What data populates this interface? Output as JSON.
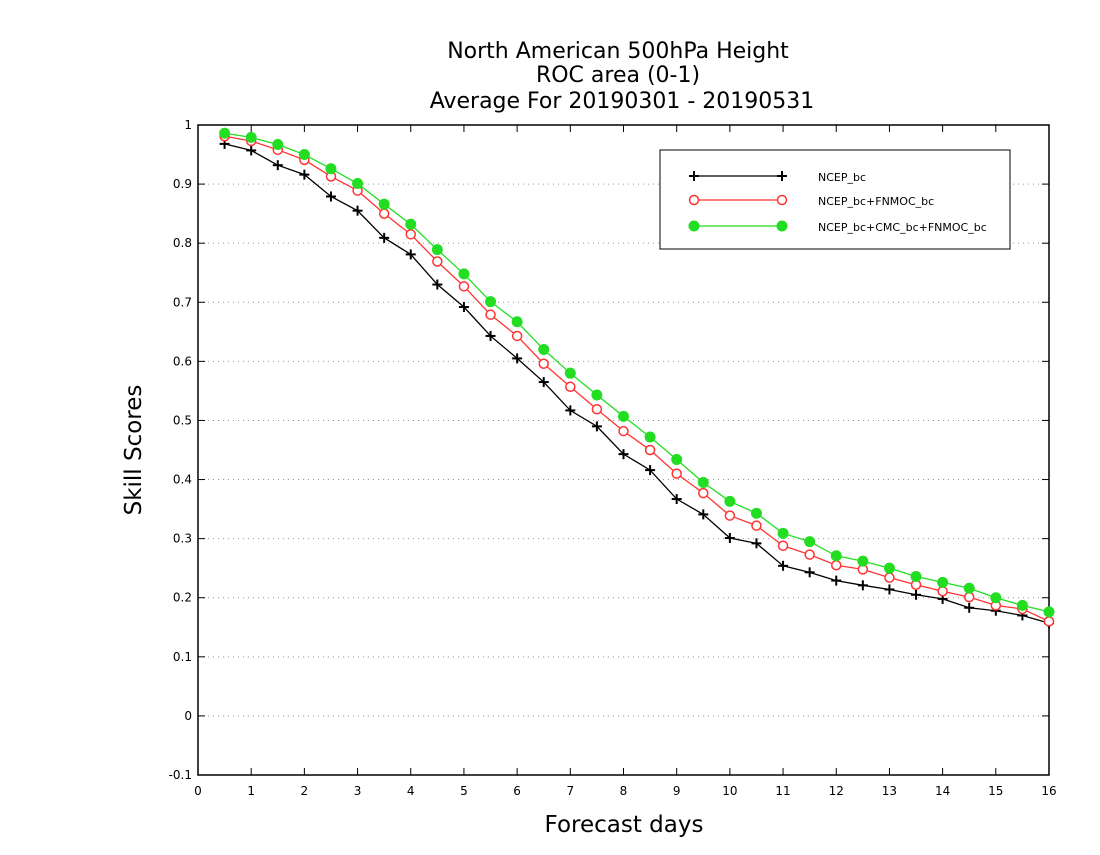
{
  "titles": [
    "North American 500hPa Height",
    "ROC area (0-1)",
    "Average For 20190301 - 20190531"
  ],
  "chart_data": {
    "type": "line",
    "title": "North American 500hPa Height / ROC area (0-1) / Average For 20190301 - 20190531",
    "xlabel": "Forecast days",
    "ylabel": "Skill Scores",
    "xlim": [
      0,
      16
    ],
    "ylim": [
      -0.1,
      1
    ],
    "xticks": [
      "0",
      "1",
      "2",
      "3",
      "4",
      "5",
      "6",
      "7",
      "8",
      "9",
      "10",
      "11",
      "12",
      "13",
      "14",
      "15",
      "16"
    ],
    "yticks": [
      "-0.1",
      "0",
      "0.1",
      "0.2",
      "0.3",
      "0.4",
      "0.5",
      "0.6",
      "0.7",
      "0.8",
      "0.9",
      "1"
    ],
    "grid": "horizontal dotted",
    "legend_position": "top-right",
    "x": [
      0.5,
      1,
      1.5,
      2,
      2.5,
      3,
      3.5,
      4,
      4.5,
      5,
      5.5,
      6,
      6.5,
      7,
      7.5,
      8,
      8.5,
      9,
      9.5,
      10,
      10.5,
      11,
      11.5,
      12,
      12.5,
      13,
      13.5,
      14,
      14.5,
      15,
      15.5,
      16
    ],
    "series": [
      {
        "name": "NCEP_bc",
        "color": "#000000",
        "marker": "plus",
        "values": [
          0.968,
          0.957,
          0.932,
          0.916,
          0.879,
          0.855,
          0.809,
          0.781,
          0.73,
          0.692,
          0.643,
          0.605,
          0.565,
          0.517,
          0.49,
          0.443,
          0.416,
          0.367,
          0.341,
          0.301,
          0.292,
          0.254,
          0.243,
          0.229,
          0.221,
          0.214,
          0.205,
          0.198,
          0.183,
          0.178,
          0.17,
          0.157
        ]
      },
      {
        "name": "NCEP_bc+FNMOC_bc",
        "color": "#ff3333",
        "marker": "open-circle",
        "values": [
          0.981,
          0.973,
          0.958,
          0.941,
          0.913,
          0.889,
          0.85,
          0.815,
          0.769,
          0.727,
          0.679,
          0.643,
          0.596,
          0.557,
          0.519,
          0.482,
          0.45,
          0.41,
          0.377,
          0.339,
          0.322,
          0.288,
          0.273,
          0.255,
          0.248,
          0.234,
          0.222,
          0.211,
          0.201,
          0.187,
          0.181,
          0.16
        ]
      },
      {
        "name": "NCEP_bc+CMC_bc+FNMOC_bc",
        "color": "#22dd22",
        "marker": "filled-circle",
        "values": [
          0.986,
          0.979,
          0.967,
          0.95,
          0.926,
          0.901,
          0.866,
          0.832,
          0.789,
          0.748,
          0.701,
          0.667,
          0.62,
          0.58,
          0.543,
          0.507,
          0.472,
          0.434,
          0.395,
          0.363,
          0.343,
          0.309,
          0.295,
          0.271,
          0.262,
          0.25,
          0.236,
          0.226,
          0.216,
          0.2,
          0.187,
          0.176
        ]
      }
    ]
  }
}
